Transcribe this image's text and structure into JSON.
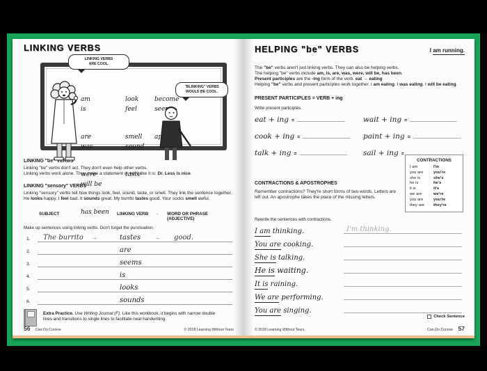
{
  "colors": {
    "frame_green": "#17a458",
    "page_bg": "#fcfcfb",
    "line_gray": "#aaaaaa",
    "answer_gray": "#a9a9a9"
  },
  "left": {
    "title": "LINKING VERBS",
    "board": {
      "bubble1": [
        "LINKING VERBS",
        "ARE COOL."
      ],
      "bubble2": [
        "\"BLINKING\" VERBS",
        "WOULD BE COOL."
      ],
      "col1": [
        "am",
        "is",
        "are",
        "was",
        "were",
        "will be",
        "has been"
      ],
      "col2": [
        "look",
        "feel",
        "smell",
        "sound",
        "taste"
      ],
      "col3": [
        "become",
        "seem",
        "appear"
      ]
    },
    "sec_be": {
      "title": "LINKING \"be\" VERBS",
      "line1": [
        {
          "t": "Linking \"be\" verbs don't act. They don't even help other verbs."
        }
      ],
      "line2": [
        {
          "t": "Linking verbs work alone. They make a statement or tell it like it is: "
        },
        {
          "t": "Dr. Less is nice",
          "b": 1
        },
        {
          "t": "."
        }
      ]
    },
    "sec_sensory": {
      "title": "LINKING \"sensory\" VERBS",
      "line1": [
        {
          "t": "Linking \"sensory\" verbs tell how things look, feel, sound, taste, or smell. They link the sentence together."
        }
      ],
      "line2": [
        {
          "t": "He "
        },
        {
          "t": "looks",
          "b": 1
        },
        {
          "t": " happy. I "
        },
        {
          "t": "feel",
          "b": 1
        },
        {
          "t": " bad. It "
        },
        {
          "t": "sounds",
          "b": 1
        },
        {
          "t": " great. My burrito "
        },
        {
          "t": "tastes",
          "b": 1
        },
        {
          "t": " good. Your socks "
        },
        {
          "t": "smell",
          "b": 1
        },
        {
          "t": " awful."
        }
      ]
    },
    "table": {
      "col_subject": "SUBJECT",
      "arrow": "→",
      "col_verb": "LINKING VERB",
      "col_phrase": "WORD OR PHRASE",
      "col_phrase2": "(ADJECTIVE)",
      "instruction": "Make up sentences using linking verbs. Don't forget the punctuation.",
      "rows": [
        {
          "num": "1.",
          "subject": "The burrito",
          "a1": "→",
          "verb": "tastes",
          "a2": "→",
          "phrase": "good."
        },
        {
          "num": "2.",
          "verb": "are"
        },
        {
          "num": "3.",
          "verb": "seems"
        },
        {
          "num": "4.",
          "verb": "is"
        },
        {
          "num": "5.",
          "verb": "looks"
        },
        {
          "num": "6.",
          "verb": "sounds"
        }
      ]
    },
    "extra": [
      {
        "t": "Extra Practice.",
        "b": 1
      },
      {
        "t": " Use "
      },
      {
        "t": "Writing Journal (F)",
        "i": 1
      },
      {
        "t": ". Like this workbook, it begins with narrow double lines and transitions to single lines to facilitate neat handwriting."
      }
    ],
    "footer": {
      "page": "56",
      "book": "Can-Do Cursive",
      "copyright": "© 2018 Learning Without Tears"
    }
  },
  "right": {
    "title": "HELPING \"be\" VERBS",
    "example": {
      "pre": "I ",
      "underlined": "am running."
    },
    "para": {
      "line1": [
        {
          "t": "The "
        },
        {
          "t": "\"be\"",
          "b": 1
        },
        {
          "t": " verbs aren't just linking verbs. They can also be helping verbs."
        }
      ],
      "line2": [
        {
          "t": "The helping \"be\" verbs include "
        },
        {
          "t": "am, is, are, was, were, will be, has been",
          "b": 1
        },
        {
          "t": "."
        }
      ],
      "line3": [
        {
          "t": "Present participles",
          "b": 1
        },
        {
          "t": " are the "
        },
        {
          "t": "-ing",
          "b": 1
        },
        {
          "t": " form of the verb. "
        },
        {
          "t": "eat",
          "b": 1
        },
        {
          "t": " → "
        },
        {
          "t": "eating",
          "b": 1
        }
      ],
      "line4": [
        {
          "t": "Helping "
        },
        {
          "t": "\"be\"",
          "b": 1
        },
        {
          "t": " verbs and present participles work together. I "
        },
        {
          "t": "am eating",
          "b": 1
        },
        {
          "t": ". I "
        },
        {
          "t": "was eating",
          "b": 1
        },
        {
          "t": ". I "
        },
        {
          "t": "will be eating",
          "b": 1
        },
        {
          "t": "."
        }
      ]
    },
    "pp": {
      "header": "PRESENT PARTICIPLES = VERB + ing",
      "instruction": "Write present participles.",
      "eq": "=",
      "rows": [
        [
          "eat + ing",
          "wait + ing"
        ],
        [
          "cook + ing",
          "paint + ing"
        ],
        [
          "talk + ing",
          "sail + ing"
        ]
      ]
    },
    "contractions": {
      "header": "CONTRACTIONS & APOSTROPHES",
      "text": "Remember contractions? They're short forms of two words. Letters are left out. An apostrophe takes the place of the missing letters.",
      "box": {
        "title": "CONTRACTIONS",
        "rows": [
          [
            "I am",
            "I'm"
          ],
          [
            "you are",
            "you're"
          ],
          [
            "she is",
            "she's"
          ],
          [
            "he is",
            "he's"
          ],
          [
            "it is",
            "it's"
          ],
          [
            "we are",
            "we're"
          ],
          [
            "you are",
            "you're"
          ],
          [
            "they are",
            "they're"
          ]
        ]
      }
    },
    "rewrite": {
      "instruction": "Rewrite the sentences with contractions.",
      "sentences": [
        {
          "u": "I am",
          "rest": " thinking.",
          "answer": "I'm thinking."
        },
        {
          "u": "You are",
          "rest": " cooking."
        },
        {
          "u": "She is",
          "rest": " talking."
        },
        {
          "u": "He is",
          "rest": " waiting."
        },
        {
          "u": "It is",
          "rest": " raining."
        },
        {
          "u": "We are",
          "rest": " performing."
        },
        {
          "u": "You are",
          "rest": " singing."
        }
      ]
    },
    "check_label": "Check Sentence",
    "footer": {
      "copyright": "© 2018 Learning Without Tears",
      "book": "Can-Do Cursive",
      "page": "57"
    }
  }
}
